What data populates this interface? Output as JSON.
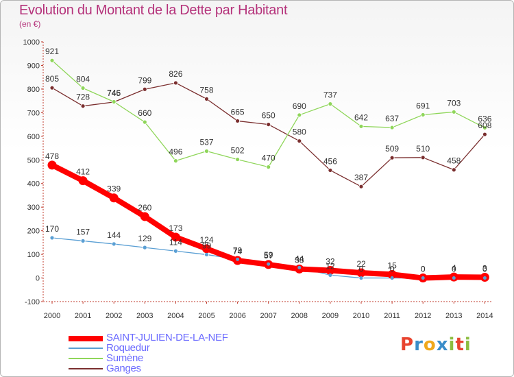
{
  "header": {
    "title": "Evolution du Montant de la Dette par Habitant",
    "subtitle": "(en €)"
  },
  "brand": {
    "logo_text": "Proxiti",
    "letter_colors": [
      "#e8432e",
      "#3a8dc9",
      "#f0a81c",
      "#3a8dc9",
      "#8cbd3f",
      "#e8432e",
      "#8cbd3f"
    ]
  },
  "chart_data": {
    "type": "line",
    "x": [
      "2000",
      "2001",
      "2002",
      "2003",
      "2004",
      "2005",
      "2006",
      "2007",
      "2008",
      "2009",
      "2010",
      "2011",
      "2012",
      "2013",
      "2014"
    ],
    "ylim": [
      -100,
      1000
    ],
    "yticks": [
      "-100",
      "0",
      "100",
      "200",
      "300",
      "400",
      "500",
      "600",
      "700",
      "800",
      "900",
      "1000"
    ],
    "grid": false,
    "legend_position": "bottom-left",
    "series": [
      {
        "name": "Ganges",
        "color": "#7a2e2e",
        "values": [
          805,
          728,
          745,
          799,
          826,
          758,
          665,
          650,
          580,
          456,
          387,
          509,
          510,
          458,
          608
        ],
        "labels": [
          "805",
          "728",
          "745",
          "799",
          "826",
          "758",
          "665",
          "650",
          "580",
          "456",
          "387",
          "509",
          "510",
          "458",
          "608"
        ]
      },
      {
        "name": "Sumène",
        "color": "#8fd65a",
        "values": [
          921,
          804,
          746,
          660,
          496,
          537,
          502,
          470,
          690,
          737,
          642,
          637,
          691,
          703,
          636
        ],
        "labels": [
          "921",
          "804",
          "746",
          "660",
          "496",
          "537",
          "502",
          "470",
          "690",
          "737",
          "642",
          "637",
          "691",
          "703",
          "636"
        ]
      },
      {
        "name": "Roquedur",
        "color": "#5a9fd4",
        "values": [
          170,
          157,
          144,
          129,
          114,
          99,
          79,
          59,
          44,
          12,
          0,
          0,
          0,
          0,
          0
        ],
        "labels": [
          "170",
          "157",
          "144",
          "129",
          "114",
          "99",
          "79",
          "59",
          "44",
          "12",
          "0",
          "0",
          "0",
          "0",
          "0"
        ]
      },
      {
        "name": "SAINT-JULIEN-DE-LA-NEF",
        "color": "#ff0000",
        "values": [
          478,
          412,
          339,
          260,
          173,
          124,
          74,
          57,
          38,
          32,
          22,
          15,
          0,
          4,
          3
        ],
        "labels": [
          "478",
          "412",
          "339",
          "260",
          "173",
          "124",
          "74",
          "57",
          "38",
          "32",
          "22",
          "15",
          "0",
          "4",
          "3"
        ]
      }
    ],
    "legend": [
      {
        "name": "SAINT-JULIEN-DE-LA-NEF",
        "color": "#ff0000"
      },
      {
        "name": "Roquedur",
        "color": "#5a9fd4"
      },
      {
        "name": "Sumène",
        "color": "#8fd65a"
      },
      {
        "name": "Ganges",
        "color": "#7a2e2e"
      }
    ]
  }
}
